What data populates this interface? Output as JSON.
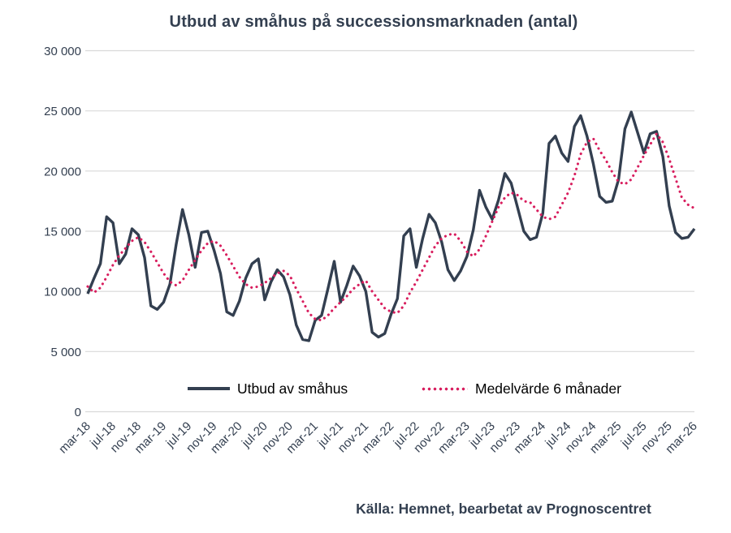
{
  "chart_data": {
    "type": "line",
    "title": "Utbud av småhus på successionsmarknaden (antal)",
    "source": "Källa: Hemnet, bearbetat av Prognoscentret",
    "background": "#ffffff",
    "grid": "horizontal",
    "grid_color": "#d9d9d9",
    "axis_text_color": "#333f50",
    "legend_text_color": "#000000",
    "legend_position": "bottom-inside",
    "ylim": [
      0,
      30000
    ],
    "y_ticks": [
      {
        "v": 0,
        "label": "0"
      },
      {
        "v": 5000,
        "label": "5 000"
      },
      {
        "v": 10000,
        "label": "10 000"
      },
      {
        "v": 15000,
        "label": "15 000"
      },
      {
        "v": 20000,
        "label": "20 000"
      },
      {
        "v": 25000,
        "label": "25 000"
      },
      {
        "v": 30000,
        "label": "30 000"
      }
    ],
    "x_tick_step": 4,
    "x_tick_labels": [
      "mar-18",
      "jul-18",
      "nov-18",
      "mar-19",
      "jul-19",
      "nov-19",
      "mar-20",
      "jul-20",
      "nov-20",
      "mar-21",
      "jul-21",
      "nov-21",
      "mar-22",
      "jul-22",
      "nov-22",
      "mar-23",
      "jul-23",
      "nov-23",
      "mar-24",
      "jul-24",
      "nov-24",
      "mar-25",
      "jul-25",
      "nov-25",
      "mar-26"
    ],
    "x": [
      "mar-18",
      "apr-18",
      "maj-18",
      "jun-18",
      "jul-18",
      "aug-18",
      "sep-18",
      "okt-18",
      "nov-18",
      "dec-18",
      "jan-19",
      "feb-19",
      "mar-19",
      "apr-19",
      "maj-19",
      "jun-19",
      "jul-19",
      "aug-19",
      "sep-19",
      "okt-19",
      "nov-19",
      "dec-19",
      "jan-20",
      "feb-20",
      "mar-20",
      "apr-20",
      "maj-20",
      "jun-20",
      "jul-20",
      "aug-20",
      "sep-20",
      "okt-20",
      "nov-20",
      "dec-20",
      "jan-21",
      "feb-21",
      "mar-21",
      "apr-21",
      "maj-21",
      "jun-21",
      "jul-21",
      "aug-21",
      "sep-21",
      "okt-21",
      "nov-21",
      "dec-21",
      "jan-22",
      "feb-22",
      "mar-22",
      "apr-22",
      "maj-22",
      "jun-22",
      "jul-22",
      "aug-22",
      "sep-22",
      "okt-22",
      "nov-22",
      "dec-22",
      "jan-23",
      "feb-23",
      "mar-23",
      "apr-23",
      "maj-23",
      "jun-23",
      "jul-23",
      "aug-23",
      "sep-23",
      "okt-23",
      "nov-23",
      "dec-23",
      "jan-24",
      "feb-24",
      "mar-24",
      "apr-24",
      "maj-24",
      "jun-24",
      "jul-24",
      "aug-24",
      "sep-24",
      "okt-24",
      "nov-24",
      "dec-24",
      "jan-25",
      "feb-25",
      "mar-25",
      "apr-25",
      "maj-25",
      "jun-25",
      "jul-25",
      "aug-25",
      "sep-25",
      "okt-25",
      "nov-25",
      "dec-25",
      "jan-26",
      "feb-26",
      "mar-26"
    ],
    "series": [
      {
        "name": "Utbud av småhus",
        "style": "solid",
        "color": "#333f50",
        "values": [
          9800,
          11100,
          12300,
          16200,
          15700,
          12300,
          13100,
          15200,
          14700,
          12800,
          8800,
          8500,
          9100,
          10600,
          13900,
          16800,
          14700,
          12000,
          14900,
          15000,
          13400,
          11500,
          8300,
          8000,
          9200,
          11100,
          12300,
          12700,
          9300,
          10800,
          11800,
          11200,
          9700,
          7200,
          6000,
          5900,
          7600,
          8000,
          10200,
          12500,
          9100,
          10500,
          12100,
          11300,
          10000,
          6600,
          6200,
          6500,
          8100,
          9400,
          14600,
          15200,
          12000,
          14400,
          16400,
          15700,
          14100,
          11800,
          10900,
          11700,
          12900,
          15100,
          18400,
          17000,
          16000,
          17600,
          19800,
          19000,
          17000,
          15000,
          14300,
          14500,
          16500,
          22300,
          22900,
          21500,
          20800,
          23700,
          24600,
          22900,
          20600,
          17900,
          17400,
          17500,
          19300,
          23500,
          24900,
          23200,
          21500,
          23100,
          23300,
          21200,
          17100,
          14900,
          14400,
          14500,
          15200
        ]
      },
      {
        "name": "Medelvärde 6 månader",
        "style": "dotted",
        "color": "#d81e5e",
        "values": [
          10400,
          9900,
          10300,
          11200,
          12200,
          13000,
          13600,
          14200,
          14500,
          14100,
          13300,
          12400,
          11500,
          10800,
          10500,
          10900,
          11800,
          12600,
          13400,
          14000,
          14200,
          13800,
          13000,
          12100,
          11200,
          10600,
          10300,
          10400,
          10700,
          11100,
          11500,
          11700,
          11300,
          10200,
          9200,
          8200,
          7700,
          7600,
          8000,
          8600,
          9100,
          9600,
          10200,
          10600,
          10900,
          10000,
          9300,
          8600,
          8300,
          8200,
          8800,
          9900,
          10800,
          11800,
          12800,
          13800,
          14400,
          14700,
          14800,
          14200,
          13300,
          12900,
          13500,
          14600,
          15800,
          17000,
          17800,
          18200,
          18000,
          17500,
          17400,
          16800,
          16200,
          16000,
          16200,
          17200,
          18200,
          19600,
          21400,
          22400,
          22700,
          21700,
          20900,
          19900,
          19100,
          18900,
          19300,
          20300,
          21300,
          22200,
          23100,
          22400,
          21000,
          19400,
          17800,
          17200,
          16900
        ]
      }
    ]
  }
}
